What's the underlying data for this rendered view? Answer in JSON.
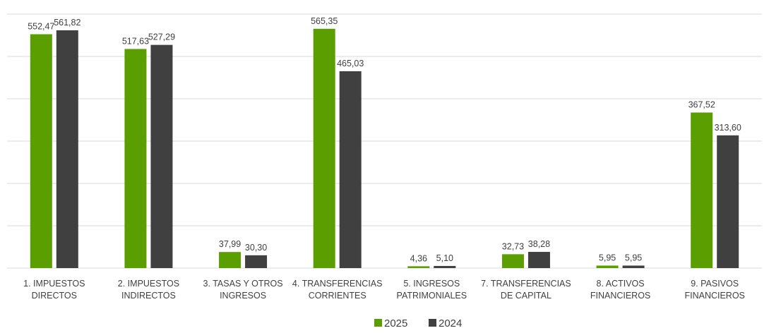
{
  "chart_data": {
    "type": "bar",
    "categories": [
      [
        "1. IMPUESTOS",
        "DIRECTOS"
      ],
      [
        "2. IMPUESTOS",
        "INDIRECTOS"
      ],
      [
        "3. TASAS Y OTROS",
        "INGRESOS"
      ],
      [
        "4. TRANSFERENCIAS",
        "CORRIENTES"
      ],
      [
        "5. INGRESOS",
        "PATRIMONIALES"
      ],
      [
        "7. TRANSFERENCIAS",
        "DE CAPITAL"
      ],
      [
        "8. ACTIVOS",
        "FINANCIEROS"
      ],
      [
        "9. PASIVOS",
        "FINANCIEROS"
      ]
    ],
    "series": [
      {
        "name": "2025",
        "color": "#5a9e00",
        "values": [
          552.47,
          517.63,
          37.99,
          565.35,
          4.36,
          32.73,
          5.95,
          367.52
        ],
        "labels": [
          "552,47",
          "517,63",
          "37,99",
          "565,35",
          "4,36",
          "32,73",
          "5,95",
          "367,52"
        ]
      },
      {
        "name": "2024",
        "color": "#404040",
        "values": [
          561.82,
          527.29,
          30.3,
          465.03,
          5.1,
          38.28,
          5.95,
          313.6
        ],
        "labels": [
          "561,82",
          "527,29",
          "30,30",
          "465,03",
          "5,10",
          "38,28",
          "5,95",
          "313,60"
        ]
      }
    ],
    "ylim": [
      0,
      600
    ],
    "grid": true,
    "legend_position": "bottom",
    "gridline_color": "#d9d9d9"
  }
}
